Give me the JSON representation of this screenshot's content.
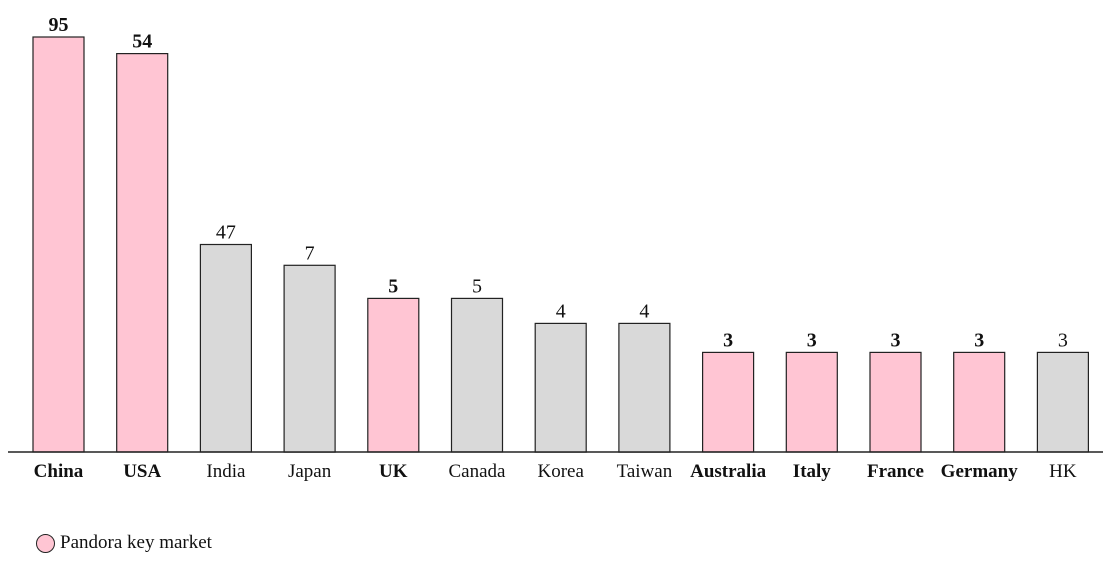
{
  "colors": {
    "key_market": "#ffc5d3",
    "other_market": "#d9d9d9",
    "outline": "#222222",
    "text": "#111111"
  },
  "legend": {
    "key_label": "Pandora key market",
    "key_icon": "circle-swatch-icon"
  },
  "chart_data": {
    "type": "bar",
    "title": "",
    "xlabel": "",
    "ylabel": "",
    "categories": [
      "China",
      "USA",
      "India",
      "Japan",
      "UK",
      "Canada",
      "Korea",
      "Taiwan",
      "Australia",
      "Italy",
      "France",
      "Germany",
      "HK"
    ],
    "value_labels": [
      "95",
      "54",
      "47",
      "7",
      "5",
      "5",
      "4",
      "4",
      "3",
      "3",
      "3",
      "3",
      "3"
    ],
    "bar_levels": [
      1.0,
      0.96,
      0.5,
      0.45,
      0.37,
      0.37,
      0.31,
      0.31,
      0.24,
      0.24,
      0.24,
      0.24,
      0.24
    ],
    "key_market": [
      true,
      true,
      false,
      false,
      true,
      false,
      false,
      false,
      true,
      true,
      true,
      true,
      false
    ],
    "legend_position": "bottom-left",
    "grid": false,
    "y_axis_visible": false
  }
}
